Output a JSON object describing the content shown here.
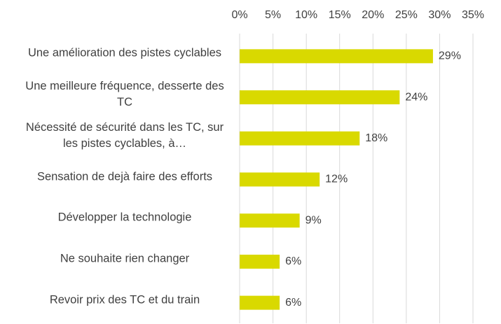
{
  "chart_data": {
    "type": "bar",
    "orientation": "horizontal",
    "categories": [
      "Une amélioration des pistes cyclables",
      "Une meilleure fréquence, desserte des TC",
      "Nécessité de sécurité dans les TC, sur les pistes cyclables, à…",
      "Sensation de dejà faire des efforts",
      "Développer la technologie",
      "Ne souhaite rien changer",
      "Revoir prix des TC et du train"
    ],
    "values": [
      29,
      24,
      18,
      12,
      9,
      6,
      6
    ],
    "value_labels": [
      "29%",
      "24%",
      "18%",
      "12%",
      "9%",
      "6%",
      "6%"
    ],
    "color": "#d9d900",
    "xlim": [
      0,
      35
    ],
    "xticks": [
      {
        "value": 0,
        "label": "0%"
      },
      {
        "value": 5,
        "label": "5%"
      },
      {
        "value": 10,
        "label": "10%"
      },
      {
        "value": 15,
        "label": "15%"
      },
      {
        "value": 20,
        "label": "20%"
      },
      {
        "value": 25,
        "label": "25%"
      },
      {
        "value": 30,
        "label": "30%"
      },
      {
        "value": 35,
        "label": "35%"
      }
    ],
    "grid": true
  }
}
